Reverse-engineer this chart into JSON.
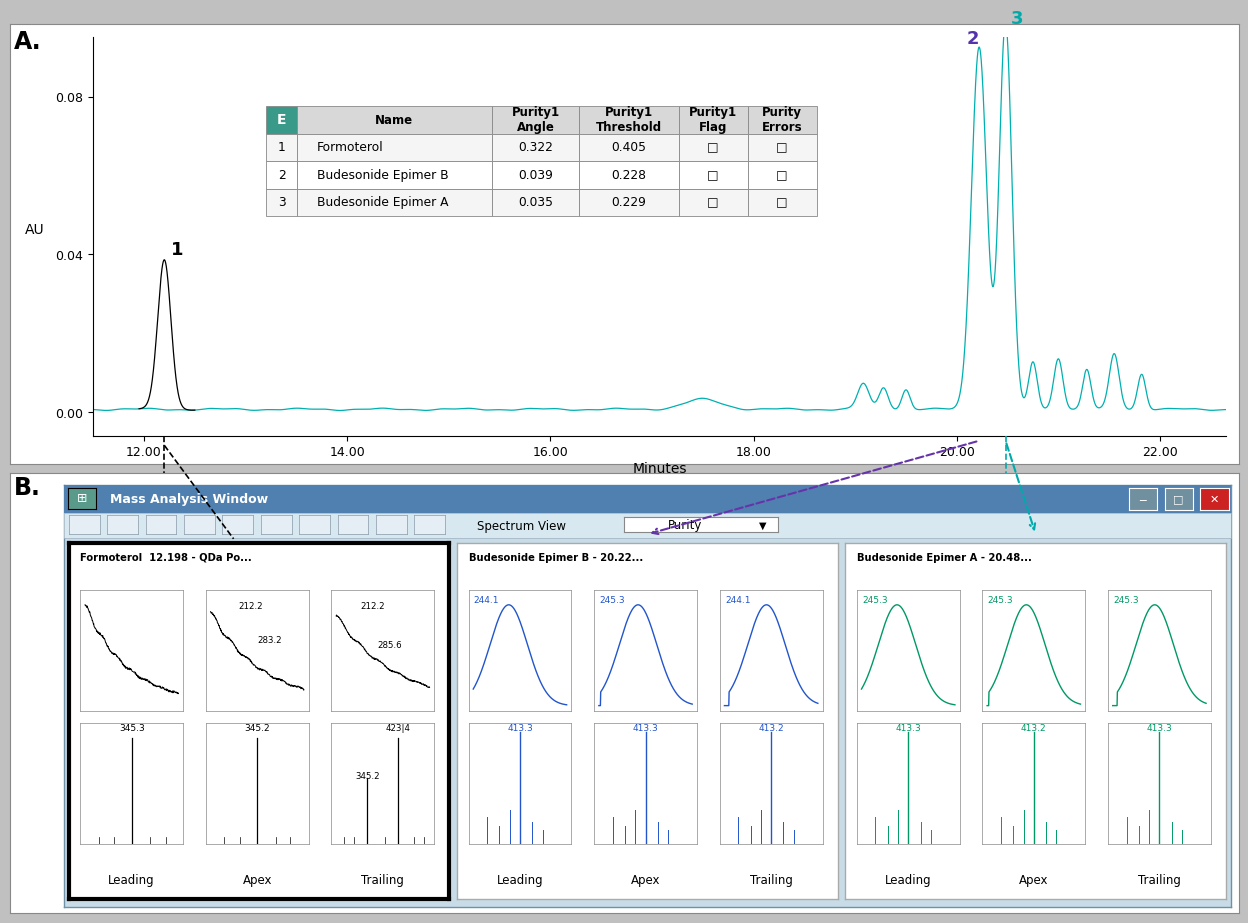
{
  "panel_a_label": "A.",
  "panel_b_label": "B.",
  "outer_bg": "#c0c0c0",
  "panel_bg": "#ffffff",
  "chrom": {
    "x_min": 11.5,
    "x_max": 22.65,
    "y_min": -0.006,
    "y_max": 0.095,
    "xticks": [
      12.0,
      14.0,
      16.0,
      18.0,
      20.0,
      22.0
    ],
    "yticks": [
      0.0,
      0.04,
      0.08
    ],
    "xlabel": "Minutes",
    "ylabel": "AU",
    "teal_color": "#00B0B0",
    "black_color": "#000000",
    "label2_color": "#5533AA",
    "label3_color": "#00AAAA"
  },
  "table": {
    "icon_color": "#3a9a8a",
    "header_bg": "#d8d8d8",
    "row_bgs": [
      "#f5f5f5",
      "#ffffff",
      "#f5f5f5"
    ],
    "rows": [
      [
        "1",
        "Formoterol",
        "0.322",
        "0.405"
      ],
      [
        "2",
        "Budesonide Epimer B",
        "0.039",
        "0.228"
      ],
      [
        "3",
        "Budesonide Epimer A",
        "0.035",
        "0.229"
      ]
    ]
  },
  "mass_win": {
    "outer_bg": "#c8dce8",
    "title_bar_color": "#5080b0",
    "title_bar_text": "Mass Analysis Window",
    "toolbar_color": "#d8e8f0",
    "sections": [
      {
        "title": "Formoterol  12.198 - QDa Po...",
        "color": "#000000",
        "border_lw": 3,
        "top_type": "decay",
        "top_labels": [
          "",
          "212.2\n283.2",
          "212.2\n285.6"
        ],
        "bot_labels": [
          "345.3",
          "345.2",
          "423|4\n345.2"
        ],
        "bot_type": "black"
      },
      {
        "title": "Budesonide Epimer B - 20.22...",
        "color": "#2255CC",
        "border_lw": 1,
        "top_type": "bell",
        "top_labels": [
          "244.1",
          "245.3",
          "244.1"
        ],
        "bot_labels": [
          "413.3",
          "413.3",
          "413.2"
        ],
        "bot_type": "colored"
      },
      {
        "title": "Budesonide Epimer A - 20.48...",
        "color": "#009966",
        "border_lw": 1,
        "top_type": "bell",
        "top_labels": [
          "245.3",
          "245.3",
          "245.3"
        ],
        "bot_labels": [
          "413.3",
          "413.2",
          "413.3"
        ],
        "bot_type": "colored"
      }
    ],
    "sublabels": [
      "Leading",
      "Apex",
      "Trailing"
    ]
  }
}
